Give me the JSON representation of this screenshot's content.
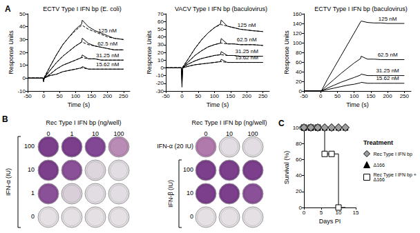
{
  "chart_data": [
    {
      "type": "line",
      "annotations": [
        "A"
      ],
      "title": "ECTV Type I IFN bp (E. coli)",
      "x_label": "Time (s)",
      "y_label": "Response Units",
      "xlim": [
        -50,
        270
      ],
      "xticks": [
        -50,
        0,
        50,
        100,
        150,
        200,
        250
      ],
      "ylim": [
        -10,
        50
      ],
      "yticks": [
        -10,
        0,
        10,
        20,
        30,
        40,
        50
      ],
      "grid": false,
      "x": [
        -50,
        -25,
        -2,
        0,
        2,
        20,
        40,
        60,
        80,
        100,
        119,
        121,
        140,
        160,
        180,
        200,
        220,
        250
      ],
      "series": [
        {
          "name": "125 nM",
          "color": "#000000",
          "line_style": "solid",
          "values": [
            0,
            0,
            0,
            -3,
            0,
            9,
            18,
            26,
            32,
            38,
            42,
            45,
            40,
            37,
            35,
            33,
            31,
            30
          ]
        },
        {
          "color": "#000000",
          "line_style": "dashed",
          "values": [
            0,
            0,
            0,
            0,
            0.8,
            9,
            18,
            26,
            32,
            37,
            41,
            41,
            38,
            36,
            34,
            32,
            31,
            30
          ]
        },
        {
          "name": "62.5 nM",
          "color": "#000000",
          "line_style": "solid",
          "values": [
            0,
            0,
            0,
            -2,
            0,
            6,
            12,
            17,
            21,
            25,
            28,
            31,
            27,
            25,
            24,
            23,
            22,
            22
          ]
        },
        {
          "color": "#000000",
          "line_style": "dashed",
          "values": [
            0,
            0,
            0,
            0,
            0.5,
            6,
            12,
            17,
            21,
            25,
            28,
            28,
            26,
            25,
            24,
            23,
            22,
            22
          ]
        },
        {
          "name": "31.25 nM",
          "color": "#000000",
          "line_style": "solid",
          "values": [
            0,
            0,
            0,
            -2,
            0,
            3,
            7,
            10,
            12,
            14,
            16,
            18,
            15,
            15,
            14,
            14,
            14,
            14
          ]
        },
        {
          "color": "#000000",
          "line_style": "dashed",
          "values": [
            0,
            0,
            0,
            0,
            0.3,
            3,
            7,
            10,
            12,
            14,
            16,
            16,
            15,
            15,
            14,
            14,
            14,
            14
          ]
        },
        {
          "name": "15.62 nM",
          "color": "#000000",
          "line_style": "solid",
          "values": [
            0,
            0,
            0,
            -1,
            0,
            2,
            3,
            5,
            6,
            7,
            8,
            9,
            7,
            7,
            7,
            7,
            7,
            7
          ]
        },
        {
          "color": "#000000",
          "line_style": "dashed",
          "values": [
            0,
            0,
            0,
            0,
            0.2,
            2,
            3,
            5,
            6,
            7,
            8,
            8,
            7,
            7,
            7,
            7,
            7,
            7
          ]
        }
      ]
    },
    {
      "type": "line",
      "title": "VACV Type I IFN bp (baculovirus)",
      "x_label": "Time (s)",
      "y_label": "Response Units",
      "xlim": [
        -50,
        270
      ],
      "xticks": [
        -50,
        0,
        50,
        100,
        150,
        200,
        250
      ],
      "ylim": [
        -30,
        70
      ],
      "yticks": [
        -30,
        -20,
        -10,
        0,
        10,
        20,
        30,
        40,
        50,
        60,
        70
      ],
      "grid": false,
      "x": [
        -50,
        -25,
        -2,
        0,
        2,
        20,
        40,
        60,
        80,
        100,
        119,
        121,
        140,
        160,
        180,
        200,
        220,
        250
      ],
      "series": [
        {
          "name": "125 nM",
          "color": "#000000",
          "line_style": "solid",
          "values": [
            0,
            0,
            0,
            -25,
            0,
            12,
            25,
            36,
            45,
            52,
            57,
            62,
            54,
            52,
            50,
            49,
            48,
            47
          ]
        },
        {
          "color": "#000000",
          "line_style": "dashed",
          "values": [
            0,
            0,
            0,
            0,
            1,
            12,
            25,
            36,
            45,
            52,
            56,
            56,
            54,
            52,
            50,
            49,
            48,
            47
          ]
        },
        {
          "name": "62.5 nM",
          "color": "#000000",
          "line_style": "solid",
          "values": [
            0,
            0,
            0,
            -20,
            0,
            8,
            16,
            22,
            27,
            30,
            32,
            38,
            31,
            31,
            30,
            30,
            30,
            29
          ]
        },
        {
          "color": "#000000",
          "line_style": "dashed",
          "values": [
            0,
            0,
            0,
            0,
            0.5,
            8,
            16,
            22,
            27,
            30,
            32,
            32,
            31,
            31,
            30,
            30,
            30,
            29
          ]
        },
        {
          "name": "31.25 nM",
          "color": "#000000",
          "line_style": "solid",
          "values": [
            0,
            0,
            0,
            -15,
            0,
            5,
            9,
            12,
            14,
            16,
            17,
            21,
            16,
            16,
            15,
            15,
            15,
            15
          ]
        },
        {
          "color": "#000000",
          "line_style": "dashed",
          "values": [
            0,
            0,
            0,
            0,
            0.3,
            5,
            9,
            12,
            14,
            16,
            17,
            17,
            16,
            16,
            15,
            15,
            15,
            15
          ]
        },
        {
          "name": "15.62 nM",
          "color": "#000000",
          "line_style": "solid",
          "values": [
            0,
            0,
            0,
            -10,
            0,
            2,
            4,
            5,
            6,
            7,
            8,
            11,
            7,
            7,
            7,
            7,
            7,
            7
          ]
        },
        {
          "color": "#000000",
          "line_style": "dashed",
          "values": [
            0,
            0,
            0,
            0,
            0.2,
            2,
            4,
            5,
            6,
            7,
            8,
            8,
            7,
            7,
            7,
            7,
            7,
            7
          ]
        }
      ]
    },
    {
      "type": "line",
      "title": "ECTV Type I IFN bp (baculovirus)",
      "x_label": "Time (s)",
      "y_label": "Response Units",
      "xlim": [
        -50,
        270
      ],
      "xticks": [
        -50,
        0,
        50,
        100,
        150,
        200,
        250
      ],
      "ylim": [
        0,
        160
      ],
      "yticks": [
        0,
        20,
        40,
        60,
        80,
        100,
        120,
        140,
        160
      ],
      "grid": false,
      "x": [
        -50,
        -25,
        -2,
        0,
        2,
        20,
        40,
        60,
        80,
        100,
        119,
        121,
        140,
        160,
        180,
        200,
        220,
        250
      ],
      "series": [
        {
          "name": "125 nM",
          "color": "#000000",
          "line_style": "solid",
          "values": [
            0,
            0,
            0,
            0,
            0,
            24,
            48,
            72,
            96,
            120,
            143,
            145,
            142,
            141,
            141,
            140,
            140,
            140
          ]
        },
        {
          "name": "62.5 nM",
          "color": "#000000",
          "line_style": "solid",
          "values": [
            0,
            0,
            0,
            0,
            0,
            12,
            24,
            36,
            47,
            58,
            67,
            72,
            66,
            66,
            65,
            65,
            65,
            65
          ]
        },
        {
          "name": "31.25 nM",
          "color": "#000000",
          "line_style": "solid",
          "values": [
            0,
            0,
            0,
            0,
            0,
            6,
            12,
            18,
            23,
            28,
            33,
            35,
            32,
            32,
            32,
            32,
            32,
            32
          ]
        },
        {
          "name": "15.62 nM",
          "color": "#000000",
          "line_style": "solid",
          "values": [
            0,
            0,
            0,
            0,
            0,
            3,
            6,
            9,
            12,
            14,
            17,
            18,
            16,
            16,
            16,
            16,
            16,
            16
          ]
        }
      ]
    },
    {
      "type": "step",
      "annotations": [
        "C"
      ],
      "x_label": "Days PI",
      "y_label": "Survival (%)",
      "xlim": [
        0,
        15
      ],
      "xticks": [
        0,
        5,
        10,
        15
      ],
      "ylim": [
        0,
        100
      ],
      "yticks": [
        0,
        20,
        40,
        60,
        80,
        100
      ],
      "grid": false,
      "legend": "right",
      "legend_title": "Treatment",
      "x": [
        0,
        2,
        4,
        6,
        8,
        10,
        12
      ],
      "series": [
        {
          "name": "Rec Type I IFN bp",
          "color": "#9e9e9e",
          "marker": "diamond",
          "values": [
            100,
            100,
            100,
            100,
            100,
            100,
            100
          ]
        },
        {
          "name": "Δ166",
          "color": "#000000",
          "marker": "triangle",
          "values": [
            100,
            100,
            100,
            100,
            100,
            100,
            100
          ]
        },
        {
          "name": "Rec Type I IFN bp + Δ166",
          "color": "#ffffff",
          "marker": "square",
          "values": [
            100,
            100,
            100,
            67,
            67,
            0,
            null
          ]
        }
      ]
    }
  ],
  "plaque_assay": {
    "annotations": [
      "B"
    ],
    "blocks": [
      {
        "title": "Rec Type I IFN bp (ng/well)",
        "columns": [
          0,
          1,
          10,
          100
        ],
        "row_title": "IFN-α (IU)",
        "rows": [
          {
            "label": 100,
            "wells": [
              "#7b3f8c",
              "#7b3f8c",
              "#824896",
              "#b98cb5"
            ]
          },
          {
            "label": 10,
            "wells": [
              "#7b3f8c",
              "#8a5098",
              "#ddd6dd",
              "#e2dde2"
            ]
          },
          {
            "label": 1,
            "wells": [
              "#8a5098",
              "#d9cfd9",
              "#e2dde2",
              "#e2dde2"
            ]
          },
          {
            "label": 0,
            "wells": [
              "#e4e0e4",
              "#e4e0e4",
              "#e4e0e4",
              "#e4e0e4"
            ]
          }
        ]
      },
      {
        "title": "Rec Type I IFN bp (ng/well)",
        "columns": [
          0,
          10,
          100
        ],
        "row_title": "IFN-β (IU)",
        "rows": [
          {
            "label": "IFN-α (20 IU)",
            "wells": [
              "#b07aac",
              "#e2dde2",
              "#e2dde2"
            ]
          },
          {
            "label": 100,
            "wells": [
              "#7b3f8c",
              "#7b3f8c",
              "#7b3f8c"
            ]
          },
          {
            "label": 10,
            "wells": [
              "#7b3f8c",
              "#7b3f8c",
              "#8a5098"
            ]
          },
          {
            "label": 0,
            "wells": [
              "#e4e0e4",
              "#e4e0e4",
              "#e4e0e4"
            ]
          }
        ]
      }
    ]
  }
}
